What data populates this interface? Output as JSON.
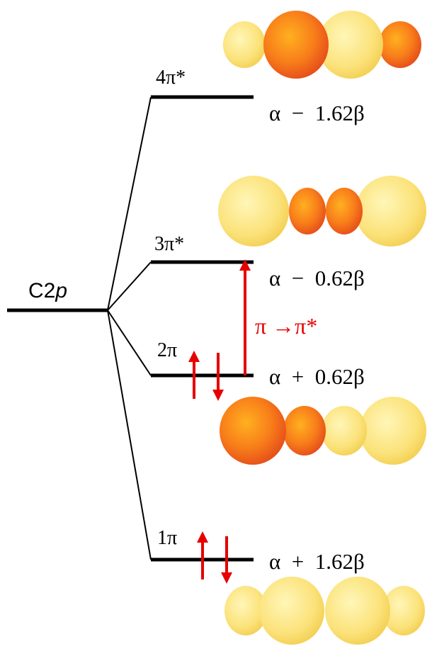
{
  "diagram": {
    "atomic_orbital": {
      "prefix": "C2",
      "suffix": "p"
    },
    "levels": [
      {
        "id": "4pi-star",
        "label": "4π*",
        "energy": "α  −  1.62β",
        "electrons": 0
      },
      {
        "id": "3pi-star",
        "label": "3π*",
        "energy": "α  −  0.62β",
        "electrons": 0
      },
      {
        "id": "2pi",
        "label": "2π",
        "energy": "α  +  0.62β",
        "electrons": 2
      },
      {
        "id": "1pi",
        "label": "1π",
        "energy": "α  +  1.62β",
        "electrons": 2
      }
    ],
    "transition": {
      "label": "π →π*",
      "from": "2pi",
      "to": "3pi-star"
    },
    "colors": {
      "level_line": "#000000",
      "electron_arrow": "#e60000",
      "transition_arrow": "#e60000",
      "lobe_large_inner": "#ffa000",
      "lobe_large_outer": "#e8501a",
      "lobe_small_inner": "#fff3a0",
      "lobe_small_outer": "#f6d254"
    }
  }
}
